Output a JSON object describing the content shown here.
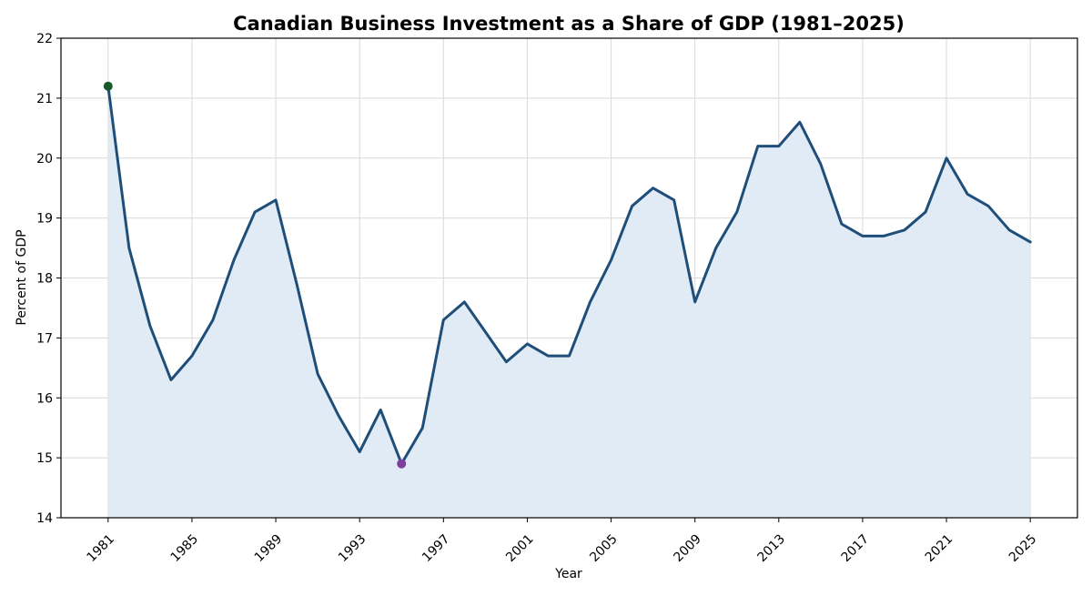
{
  "chart_data": {
    "type": "area",
    "title": "Canadian Business Investment as a Share of GDP (1981–2025)",
    "xlabel": "Year",
    "ylabel": "Percent of GDP",
    "x": [
      1981,
      1982,
      1983,
      1984,
      1985,
      1986,
      1987,
      1988,
      1989,
      1990,
      1991,
      1992,
      1993,
      1994,
      1995,
      1996,
      1997,
      1998,
      1999,
      2000,
      2001,
      2002,
      2003,
      2004,
      2005,
      2006,
      2007,
      2008,
      2009,
      2010,
      2011,
      2012,
      2013,
      2014,
      2015,
      2016,
      2017,
      2018,
      2019,
      2020,
      2021,
      2022,
      2023,
      2024,
      2025
    ],
    "series": [
      {
        "values": [
          21.2,
          18.5,
          17.2,
          16.3,
          16.7,
          17.3,
          18.3,
          19.1,
          19.3,
          17.9,
          16.4,
          15.7,
          15.1,
          15.8,
          14.9,
          15.5,
          17.3,
          17.6,
          17.1,
          16.6,
          16.9,
          16.7,
          16.7,
          17.6,
          18.3,
          19.2,
          19.5,
          19.3,
          17.6,
          18.5,
          19.1,
          20.2,
          20.2,
          20.6,
          19.9,
          18.9,
          18.7,
          18.7,
          18.8,
          19.1,
          20.0,
          19.4,
          19.2,
          18.8,
          18.6
        ],
        "color": "#1f4e79",
        "fill_color": "#deeaf5"
      }
    ],
    "highlights": [
      {
        "x": 1981,
        "y": 21.2,
        "color": "#1a5a2a"
      },
      {
        "x": 1995,
        "y": 14.9,
        "color": "#7e3f9e"
      }
    ],
    "xticks": [
      1981,
      1985,
      1989,
      1993,
      1997,
      2001,
      2005,
      2009,
      2013,
      2017,
      2021,
      2025
    ],
    "yticks": [
      14,
      15,
      16,
      17,
      18,
      19,
      20,
      21,
      22
    ],
    "xlim": [
      1978.75,
      2027.25
    ],
    "ylim": [
      14,
      22
    ],
    "grid": true,
    "colors": {
      "grid": "#d9d9d9",
      "axes": "#000000"
    }
  }
}
